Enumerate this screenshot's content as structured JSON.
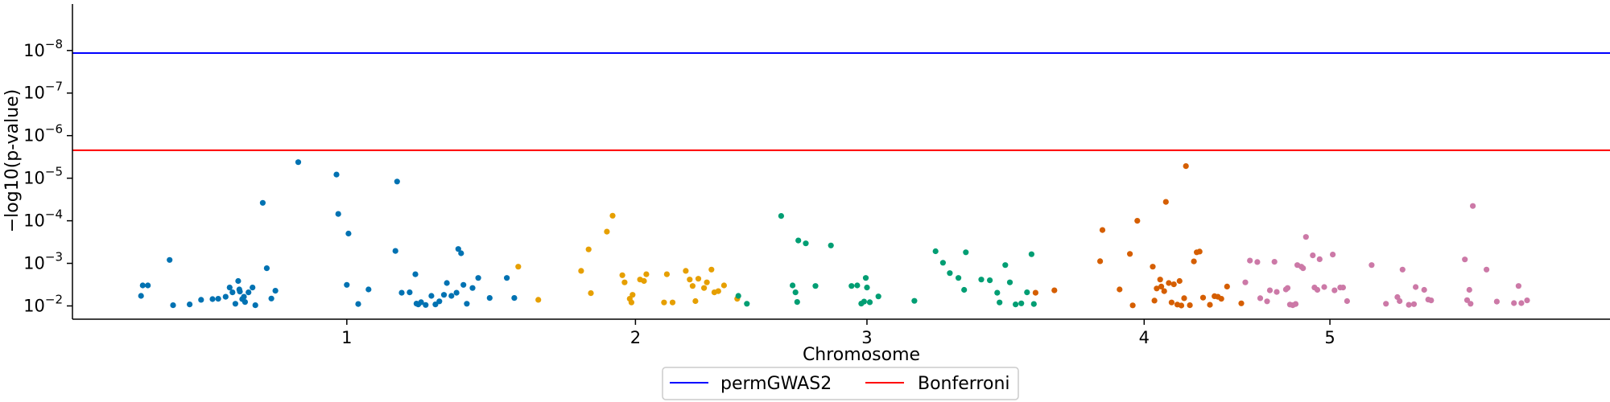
{
  "chart_data": {
    "type": "scatter",
    "xlabel": "Chromosome",
    "ylabel": "−log10(p-value)",
    "y_scale": "log",
    "xlim": [
      0,
      2690
    ],
    "ylim": [
      0.0205,
      8.1e-10
    ],
    "x_ticks": [
      {
        "value": 480,
        "label": "1"
      },
      {
        "value": 985,
        "label": "2"
      },
      {
        "value": 1390,
        "label": "3"
      },
      {
        "value": 1875,
        "label": "4"
      },
      {
        "value": 2200,
        "label": "5"
      }
    ],
    "y_ticks": [
      {
        "value": 0.01,
        "base": "10",
        "exp": "−2"
      },
      {
        "value": 0.001,
        "base": "10",
        "exp": "−3"
      },
      {
        "value": 0.0001,
        "base": "10",
        "exp": "−4"
      },
      {
        "value": 1e-05,
        "base": "10",
        "exp": "−5"
      },
      {
        "value": 1e-06,
        "base": "10",
        "exp": "−6"
      },
      {
        "value": 1e-07,
        "base": "10",
        "exp": "−7"
      },
      {
        "value": 1e-08,
        "base": "10",
        "exp": "−8"
      }
    ],
    "thresholds": [
      {
        "name": "permGWAS2",
        "value": 1.15e-08,
        "color": "#0000ff"
      },
      {
        "name": "Bonferroni",
        "value": 2.2e-06,
        "color": "#ff0000"
      }
    ],
    "legend": "bottom-center",
    "series": [
      {
        "color": "#0072b2",
        "points": [
          [
            120,
            0.0058
          ],
          [
            123,
            0.0033
          ],
          [
            132,
            0.0033
          ],
          [
            170,
            0.00083
          ],
          [
            176,
            0.0096
          ],
          [
            205,
            0.0092
          ],
          [
            225,
            0.0072
          ],
          [
            245,
            0.0069
          ],
          [
            255,
            0.0068
          ],
          [
            268,
            0.0061
          ],
          [
            275,
            0.0037
          ],
          [
            280,
            0.0048
          ],
          [
            285,
            0.0089
          ],
          [
            290,
            0.0026
          ],
          [
            292,
            0.0041
          ],
          [
            293,
            0.0046
          ],
          [
            297,
            0.0069
          ],
          [
            300,
            0.0061
          ],
          [
            302,
            0.0081
          ],
          [
            308,
            0.0048
          ],
          [
            315,
            0.0037
          ],
          [
            320,
            0.0096
          ],
          [
            333,
            3.8e-05
          ],
          [
            340,
            0.0013
          ],
          [
            348,
            0.0067
          ],
          [
            355,
            0.0044
          ],
          [
            395,
            4.2e-06
          ],
          [
            462,
            8.2e-06
          ],
          [
            465,
            6.9e-05
          ],
          [
            480,
            0.0032
          ],
          [
            483,
            0.0002
          ],
          [
            500,
            0.009
          ],
          [
            518,
            0.0041
          ],
          [
            565,
            0.00051
          ],
          [
            568,
            1.2e-05
          ],
          [
            576,
            0.0049
          ],
          [
            590,
            0.0048
          ],
          [
            600,
            0.0018
          ],
          [
            602,
            0.0088
          ],
          [
            605,
            0.0092
          ],
          [
            610,
            0.0082
          ],
          [
            618,
            0.0095
          ],
          [
            628,
            0.0058
          ],
          [
            635,
            0.0092
          ],
          [
            642,
            0.0078
          ],
          [
            650,
            0.0055
          ],
          [
            655,
            0.0029
          ],
          [
            663,
            0.0058
          ],
          [
            672,
            0.0049
          ],
          [
            675,
            0.00046
          ],
          [
            680,
            0.00058
          ],
          [
            684,
            0.0032
          ],
          [
            690,
            0.0089
          ],
          [
            700,
            0.0038
          ],
          [
            710,
            0.0022
          ],
          [
            730,
            0.0065
          ],
          [
            760,
            0.0022
          ],
          [
            773,
            0.0065
          ]
        ]
      },
      {
        "color": "#e69f00",
        "points": [
          [
            780,
            0.0012
          ],
          [
            815,
            0.0072
          ],
          [
            890,
            0.0015
          ],
          [
            903,
            0.00047
          ],
          [
            907,
            0.005
          ],
          [
            935,
            0.00018
          ],
          [
            945,
            7.6e-05
          ],
          [
            962,
            0.0019
          ],
          [
            966,
            0.0028
          ],
          [
            975,
            0.0068
          ],
          [
            978,
            0.0083
          ],
          [
            980,
            0.0055
          ],
          [
            993,
            0.0024
          ],
          [
            1000,
            0.0026
          ],
          [
            1004,
            0.0018
          ],
          [
            1035,
            0.0083
          ],
          [
            1040,
            0.0018
          ],
          [
            1050,
            0.0083
          ],
          [
            1073,
            0.0015
          ],
          [
            1080,
            0.0024
          ],
          [
            1085,
            0.0034
          ],
          [
            1090,
            0.0077
          ],
          [
            1095,
            0.0023
          ],
          [
            1105,
            0.0038
          ],
          [
            1110,
            0.0028
          ],
          [
            1118,
            0.0014
          ],
          [
            1123,
            0.0048
          ],
          [
            1130,
            0.0045
          ],
          [
            1140,
            0.0033
          ],
          [
            1163,
            0.0068
          ]
        ]
      },
      {
        "color": "#009e73",
        "points": [
          [
            1165,
            0.0058
          ],
          [
            1180,
            0.0089
          ],
          [
            1240,
            7.7e-05
          ],
          [
            1260,
            0.0033
          ],
          [
            1265,
            0.0048
          ],
          [
            1268,
            0.0081
          ],
          [
            1270,
            0.00029
          ],
          [
            1283,
            0.00034
          ],
          [
            1300,
            0.0034
          ],
          [
            1327,
            0.00038
          ],
          [
            1363,
            0.0034
          ],
          [
            1373,
            0.0033
          ],
          [
            1380,
            0.0088
          ],
          [
            1385,
            0.0079
          ],
          [
            1388,
            0.0022
          ],
          [
            1390,
            0.0037
          ],
          [
            1395,
            0.0082
          ],
          [
            1410,
            0.006
          ],
          [
            1473,
            0.0076
          ],
          [
            1510,
            0.00052
          ],
          [
            1523,
            0.00097
          ],
          [
            1535,
            0.0017
          ],
          [
            1550,
            0.0022
          ],
          [
            1560,
            0.0042
          ],
          [
            1563,
            0.00055
          ],
          [
            1590,
            0.0024
          ],
          [
            1605,
            0.0025
          ],
          [
            1618,
            0.0049
          ],
          [
            1622,
            0.0083
          ],
          [
            1632,
            0.0011
          ],
          [
            1640,
            0.0028
          ],
          [
            1650,
            0.0092
          ],
          [
            1660,
            0.0087
          ],
          [
            1670,
            0.0048
          ],
          [
            1678,
            0.00061
          ],
          [
            1682,
            0.009
          ]
        ]
      },
      {
        "color": "#d55e00",
        "points": [
          [
            1685,
            0.0049
          ],
          [
            1718,
            0.0043
          ],
          [
            1798,
            0.00089
          ],
          [
            1802,
            0.000165
          ],
          [
            1832,
            0.0041
          ],
          [
            1850,
            0.0006
          ],
          [
            1855,
            0.0097
          ],
          [
            1863,
            9.99e-05
          ],
          [
            1890,
            0.0012
          ],
          [
            1893,
            0.0075
          ],
          [
            1897,
            0.0039
          ],
          [
            1903,
            0.0024
          ],
          [
            1905,
            0.0035
          ],
          [
            1910,
            0.0045
          ],
          [
            1913,
            3.6e-05
          ],
          [
            1918,
            0.0029
          ],
          [
            1923,
            0.0083
          ],
          [
            1927,
            0.0031
          ],
          [
            1933,
            0.0093
          ],
          [
            1937,
            0.0026
          ],
          [
            1940,
            0.0098
          ],
          [
            1945,
            0.0066
          ],
          [
            1948,
            5.2e-06
          ],
          [
            1955,
            0.0096
          ],
          [
            1962,
            0.0009
          ],
          [
            1967,
            0.00055
          ],
          [
            1972,
            0.00053
          ],
          [
            1978,
            0.0064
          ],
          [
            1990,
            0.0094
          ],
          [
            1998,
            0.0059
          ],
          [
            2004,
            0.0061
          ],
          [
            2010,
            0.0068
          ],
          [
            2020,
            0.0035
          ],
          [
            2045,
            0.0087
          ]
        ]
      },
      {
        "color": "#cc79a7",
        "points": [
          [
            2052,
            0.0028
          ],
          [
            2060,
            0.00086
          ],
          [
            2073,
            0.00093
          ],
          [
            2078,
            0.0066
          ],
          [
            2090,
            0.0078
          ],
          [
            2095,
            0.0043
          ],
          [
            2103,
            0.00092
          ],
          [
            2107,
            0.0047
          ],
          [
            2123,
            0.0041
          ],
          [
            2126,
            0.0038
          ],
          [
            2130,
            0.0093
          ],
          [
            2135,
            0.0096
          ],
          [
            2140,
            0.009
          ],
          [
            2143,
            0.0011
          ],
          [
            2150,
            0.0012
          ],
          [
            2153,
            0.0013
          ],
          [
            2158,
            0.00024
          ],
          [
            2170,
            0.00065
          ],
          [
            2173,
            0.0037
          ],
          [
            2178,
            0.0042
          ],
          [
            2182,
            0.0008
          ],
          [
            2190,
            0.0036
          ],
          [
            2205,
            0.00062
          ],
          [
            2208,
            0.0043
          ],
          [
            2218,
            0.0037
          ],
          [
            2223,
            0.0037
          ],
          [
            2230,
            0.0077
          ],
          [
            2273,
            0.0011
          ],
          [
            2298,
            0.0089
          ],
          [
            2318,
            0.0062
          ],
          [
            2322,
            0.0077
          ],
          [
            2327,
            0.0014
          ],
          [
            2338,
            0.0094
          ],
          [
            2347,
            0.0091
          ],
          [
            2350,
            0.0036
          ],
          [
            2365,
            0.0042
          ],
          [
            2372,
            0.0071
          ],
          [
            2377,
            0.0074
          ],
          [
            2436,
            0.00081
          ],
          [
            2440,
            0.0073
          ],
          [
            2444,
            0.0042
          ],
          [
            2446,
            0.0089
          ],
          [
            2450,
            4.5e-05
          ],
          [
            2474,
            0.0014
          ],
          [
            2492,
            0.0079
          ],
          [
            2522,
            0.0086
          ],
          [
            2530,
            0.0034
          ],
          [
            2535,
            0.0086
          ],
          [
            2545,
            0.0074
          ]
        ]
      }
    ]
  }
}
